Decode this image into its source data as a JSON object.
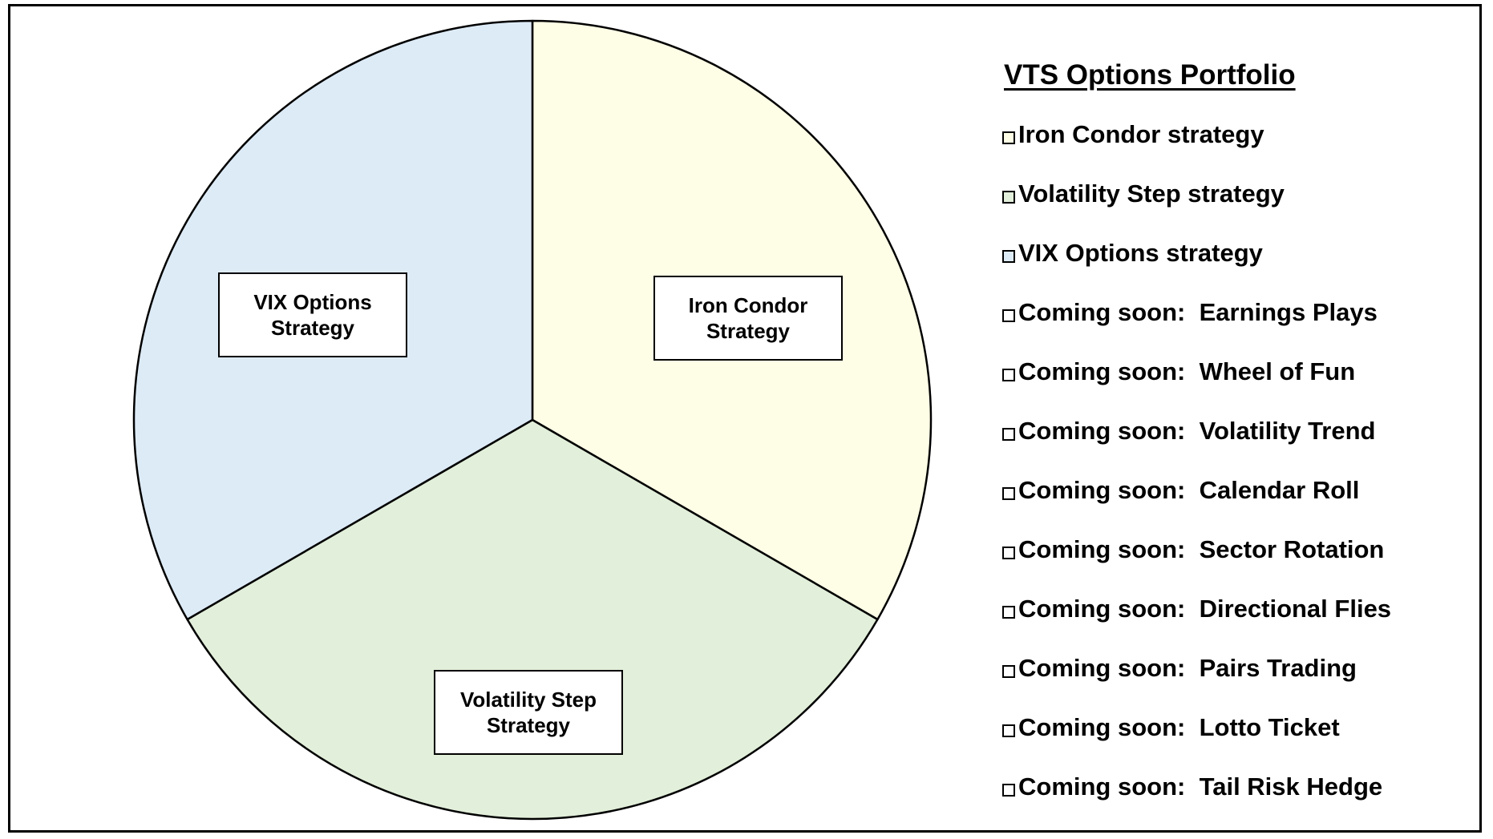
{
  "chart_data": {
    "type": "pie",
    "title": "VTS Options Portfolio",
    "slices": [
      {
        "label": "Iron Condor Strategy",
        "value": 33.33,
        "color": "#FEFEE6"
      },
      {
        "label": "Volatility Step Strategy",
        "value": 33.33,
        "color": "#E2EFDA"
      },
      {
        "label": "VIX Options Strategy",
        "value": 33.33,
        "color": "#DDEBF7"
      }
    ],
    "legend_placement": "right",
    "legend": [
      {
        "text": "Iron Condor strategy",
        "color": "#FEFEE6"
      },
      {
        "text": "Volatility Step strategy",
        "color": "#E2EFDA"
      },
      {
        "text": "VIX Options strategy",
        "color": "#DDEBF7"
      },
      {
        "text": "Coming soon:  Earnings Plays",
        "color": "#FFFFFF"
      },
      {
        "text": "Coming soon:  Wheel of Fun",
        "color": "#FFFFFF"
      },
      {
        "text": "Coming soon:  Volatility Trend",
        "color": "#FFFFFF"
      },
      {
        "text": "Coming soon:  Calendar Roll",
        "color": "#FFFFFF"
      },
      {
        "text": "Coming soon:  Sector Rotation",
        "color": "#FFFFFF"
      },
      {
        "text": "Coming soon:  Directional Flies",
        "color": "#FFFFFF"
      },
      {
        "text": "Coming soon:  Pairs Trading",
        "color": "#FFFFFF"
      },
      {
        "text": "Coming soon:  Lotto Ticket",
        "color": "#FFFFFF"
      },
      {
        "text": "Coming soon:  Tail Risk Hedge",
        "color": "#FFFFFF"
      }
    ]
  }
}
